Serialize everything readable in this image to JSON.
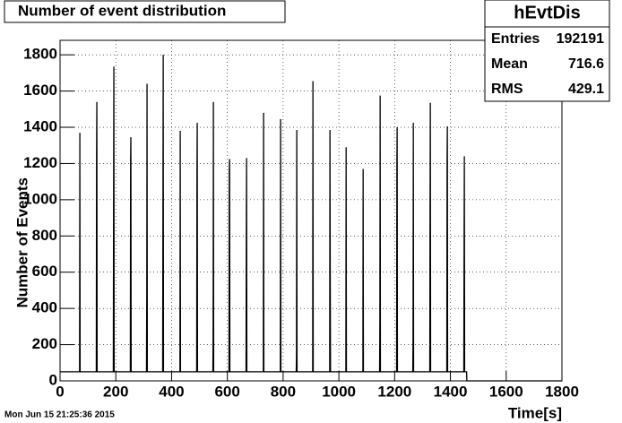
{
  "chart_data": {
    "type": "line",
    "title": "Number of event distribution",
    "x_label": "Time[s]",
    "y_label": "Number of Events",
    "footer": "Mon Jun 15 21:25:36 2015",
    "stats": {
      "title": "hEvtDis",
      "rows": [
        {
          "label": "Entries",
          "value": 192191
        },
        {
          "label": "Mean",
          "value": 716.6
        },
        {
          "label": "RMS",
          "value": 429.1
        }
      ]
    },
    "xlim": [
      0,
      1800
    ],
    "ylim": [
      0,
      1880
    ],
    "xticks": [
      0,
      200,
      400,
      600,
      800,
      1000,
      1200,
      1400,
      1600,
      1800
    ],
    "yticks": [
      0,
      200,
      400,
      600,
      800,
      1000,
      1200,
      1400,
      1600,
      1800
    ],
    "grid": true,
    "color": "#000000",
    "x": [
      0,
      70,
      71,
      72,
      130,
      131,
      132,
      133,
      191,
      192,
      193,
      194,
      252,
      253,
      254,
      255,
      310,
      311,
      312,
      313,
      368,
      369,
      370,
      371,
      430,
      431,
      432,
      490,
      491,
      492,
      493,
      548,
      549,
      550,
      551,
      606,
      607,
      608,
      609,
      667,
      668,
      669,
      670,
      729,
      730,
      731,
      790,
      791,
      792,
      847,
      848,
      849,
      850,
      906,
      907,
      908,
      967,
      968,
      969,
      970,
      1025,
      1026,
      1027,
      1086,
      1087,
      1088,
      1146,
      1147,
      1148,
      1149,
      1207,
      1208,
      1209,
      1210,
      1265,
      1266,
      1267,
      1268,
      1326,
      1327,
      1328,
      1329,
      1387,
      1388,
      1389,
      1390,
      1448,
      1449,
      1450,
      1451,
      1458,
      1459,
      1800
    ],
    "values": [
      50,
      50,
      1370,
      50,
      50,
      1250,
      1540,
      50,
      50,
      980,
      1735,
      50,
      50,
      1220,
      1345,
      50,
      50,
      500,
      1640,
      50,
      50,
      960,
      1800,
      50,
      50,
      1380,
      50,
      50,
      1145,
      1425,
      50,
      50,
      250,
      1540,
      50,
      50,
      1165,
      1225,
      50,
      50,
      790,
      1230,
      50,
      50,
      1480,
      50,
      50,
      1445,
      50,
      50,
      150,
      1385,
      50,
      50,
      1655,
      50,
      50,
      1385,
      590,
      50,
      50,
      1290,
      50,
      50,
      1170,
      50,
      50,
      320,
      1575,
      50,
      50,
      1200,
      1400,
      50,
      50,
      250,
      1425,
      50,
      50,
      950,
      1535,
      50,
      50,
      1220,
      1405,
      50,
      50,
      750,
      1240,
      50,
      50,
      0,
      0
    ]
  }
}
